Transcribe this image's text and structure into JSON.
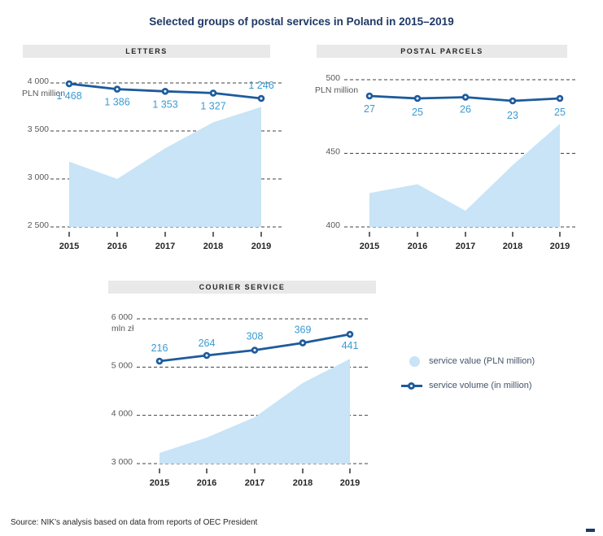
{
  "title": "Selected groups of postal services in Poland in 2015–2019",
  "source": "Source: NIK’s analysis based on data from reports of OEC President",
  "legend": {
    "items": [
      {
        "swatch": "area-circle",
        "label": "service value (PLN million)"
      },
      {
        "swatch": "line-marker",
        "label": "service volume (in million)"
      }
    ]
  },
  "colors": {
    "area_fill": "#c8e4f6",
    "line": "#1d5b9d",
    "data_label": "#3a9ad2",
    "title": "#1f3864",
    "grid": "#404040"
  },
  "chart_data": [
    {
      "type": "combo",
      "title": "LETTERS",
      "x": [
        "2015",
        "2016",
        "2017",
        "2018",
        "2019"
      ],
      "ylabel": "PLN million",
      "ylim": [
        2500,
        4000
      ],
      "yticks": [
        4000,
        3500,
        3000,
        2500
      ],
      "ytick_labels": [
        "4 000",
        "3 500",
        "3 000",
        "2 500"
      ],
      "grid": "horizontal dashed",
      "legend_position": "right of courier panel",
      "series": [
        {
          "name": "service value (PLN million)",
          "type": "area",
          "values": [
            3180,
            3000,
            3320,
            3590,
            3750
          ]
        },
        {
          "name": "service volume (in million)",
          "type": "line",
          "values": [
            1468,
            1386,
            1353,
            1327,
            1246
          ],
          "labels": [
            "1 468",
            "1 386",
            "1 353",
            "1 327",
            "1 246"
          ]
        }
      ]
    },
    {
      "type": "combo",
      "title": "POSTAL PARCELS",
      "x": [
        "2015",
        "2016",
        "2017",
        "2018",
        "2019"
      ],
      "ylabel": "PLN million",
      "ylim": [
        400,
        500
      ],
      "yticks": [
        500,
        450,
        400
      ],
      "ytick_labels": [
        "500",
        "450",
        "400"
      ],
      "grid": "horizontal dashed",
      "series": [
        {
          "name": "service value (PLN million)",
          "type": "area",
          "values": [
            423,
            429,
            411,
            442,
            470
          ]
        },
        {
          "name": "service volume (in million)",
          "type": "line",
          "values": [
            27,
            25,
            26,
            23,
            25
          ],
          "labels": [
            "27",
            "25",
            "26",
            "23",
            "25"
          ]
        }
      ]
    },
    {
      "type": "combo",
      "title": "COURIER SERVICE",
      "x": [
        "2015",
        "2016",
        "2017",
        "2018",
        "2019"
      ],
      "ylabel": "mln zł",
      "ylim": [
        3000,
        6000
      ],
      "yticks": [
        6000,
        5000,
        4000,
        3000
      ],
      "ytick_labels": [
        "6 000",
        "5 000",
        "4 000",
        "3 000"
      ],
      "grid": "horizontal dashed",
      "series": [
        {
          "name": "service value (PLN million)",
          "type": "area",
          "values": [
            3220,
            3540,
            3960,
            4670,
            5170
          ]
        },
        {
          "name": "service volume (in million)",
          "type": "line",
          "values": [
            216,
            264,
            308,
            369,
            441
          ],
          "labels": [
            "216",
            "264",
            "308",
            "369",
            "441"
          ]
        }
      ]
    }
  ]
}
